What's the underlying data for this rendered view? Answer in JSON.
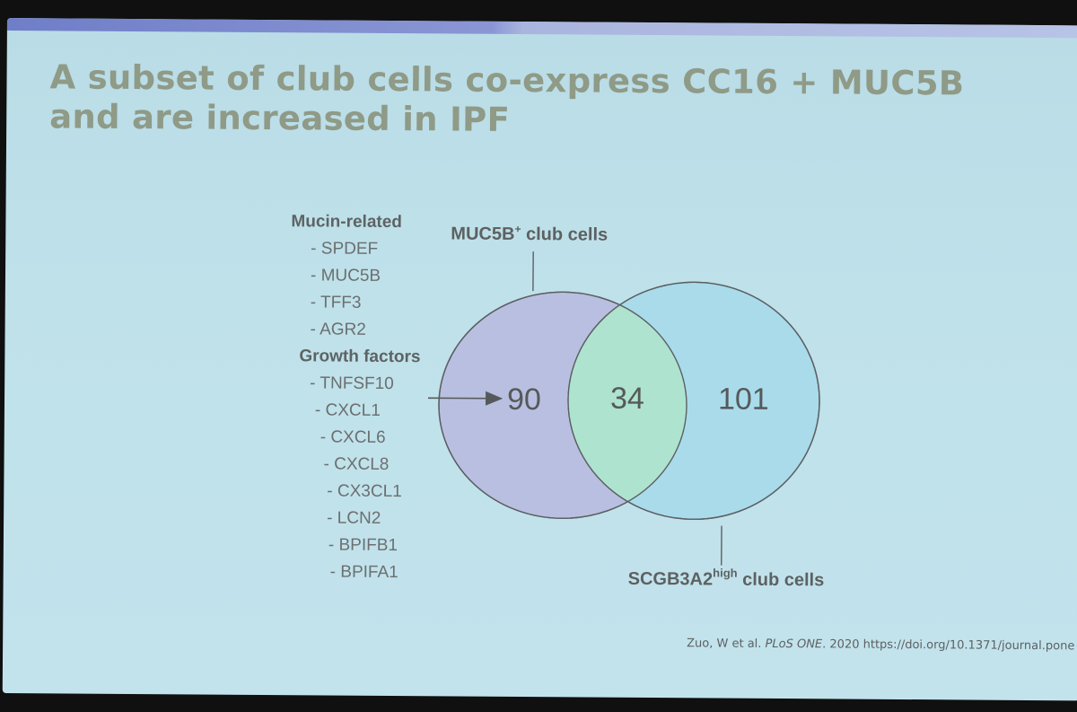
{
  "slide": {
    "title_line1": "A subset of club cells co-express CC16 + MUC5B",
    "title_line2": "and are increased in IPF"
  },
  "gene_list": {
    "group1_header": "Mucin-related",
    "group1_items": [
      "- SPDEF",
      "- MUC5B",
      "- TFF3",
      "- AGR2"
    ],
    "group2_header": "Growth factors",
    "group2_items": [
      "- TNFSF10",
      "- CXCL1",
      "- CXCL6",
      "- CXCL8",
      "- CX3CL1",
      "- LCN2",
      "- BPIFB1",
      "- BPIFA1"
    ]
  },
  "venn": {
    "left_set_label": "MUC5B",
    "left_set_label_sup": "+",
    "left_set_label_suffix": " club cells",
    "right_set_label": "SCGB3A2",
    "right_set_label_sup": "high",
    "right_set_label_suffix": " club cells",
    "left_only": "90",
    "overlap": "34",
    "right_only": "101",
    "colors": {
      "left_fill": "#b9bfe0",
      "right_fill": "#a9dbeb",
      "overlap_fill": "#aee3cf",
      "outline": "#5c6063"
    }
  },
  "citation": {
    "authors": "Zuo, W et al. ",
    "journal": "PLoS ONE",
    "rest": ". 2020 https://doi.org/10.1371/journal.pone"
  }
}
